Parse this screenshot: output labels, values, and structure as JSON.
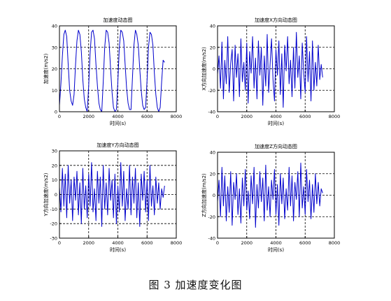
{
  "caption": "图 3  加速度变化图",
  "style": {
    "line_color": "#0000cc",
    "axis_color": "#000000",
    "grid_color": "#000000"
  },
  "chart_data": [
    {
      "type": "line",
      "title": "加速度动态图",
      "xlabel": "时间(s)",
      "ylabel": "加速度(m/s2)",
      "xlim": [
        0,
        8000
      ],
      "ylim": [
        0,
        40
      ],
      "xticks": [
        0,
        2000,
        4000,
        6000,
        8000
      ],
      "yticks": [
        0,
        10,
        20,
        30,
        40
      ],
      "grid": true,
      "series": [
        {
          "x": [
            0,
            100,
            200,
            300,
            400,
            500,
            600,
            700,
            800,
            900,
            1000,
            1100,
            1200,
            1300,
            1400,
            1500,
            1600,
            1700,
            1800,
            1900,
            2000,
            2100,
            2200,
            2300,
            2400,
            2500,
            2600,
            2700,
            2800,
            2900,
            3000,
            3100,
            3200,
            3300,
            3400,
            3500,
            3600,
            3700,
            3800,
            3900,
            4000,
            4100,
            4200,
            4300,
            4400,
            4500,
            4600,
            4700,
            4800,
            4900,
            5000,
            5100,
            5200,
            5300,
            5400,
            5500,
            5600,
            5700,
            5800,
            5900,
            6000,
            6100,
            6200,
            6300,
            6400,
            6500,
            6600,
            6700,
            6800,
            6900,
            7000,
            7100,
            7200
          ],
          "y": [
            3,
            13,
            26,
            36,
            38,
            35,
            22,
            10,
            5,
            3,
            8,
            22,
            33,
            38,
            36,
            28,
            15,
            6,
            2,
            0,
            12,
            27,
            37,
            38,
            34,
            22,
            12,
            4,
            1,
            0,
            14,
            30,
            38,
            37,
            32,
            20,
            9,
            2,
            0,
            1,
            14,
            30,
            38,
            37,
            33,
            22,
            11,
            4,
            1,
            1,
            16,
            31,
            38,
            36,
            31,
            20,
            10,
            3,
            1,
            2,
            15,
            30,
            37,
            36,
            31,
            18,
            8,
            2,
            0,
            2,
            14,
            24,
            23
          ]
        }
      ]
    },
    {
      "type": "line",
      "title": "加速度X方向动态图",
      "xlabel": "时间(s)",
      "ylabel": "X方向加速度(m/s2)",
      "xlim": [
        0,
        8000
      ],
      "ylim": [
        -40,
        40
      ],
      "xticks": [
        0,
        2000,
        4000,
        6000,
        8000
      ],
      "yticks": [
        -40,
        -20,
        0,
        20,
        40
      ],
      "grid": true,
      "series": [
        {
          "x": [
            0,
            100,
            200,
            300,
            400,
            500,
            600,
            700,
            800,
            900,
            1000,
            1100,
            1200,
            1300,
            1400,
            1500,
            1600,
            1700,
            1800,
            1900,
            2000,
            2100,
            2200,
            2300,
            2400,
            2500,
            2600,
            2700,
            2800,
            2900,
            3000,
            3100,
            3200,
            3300,
            3400,
            3500,
            3600,
            3700,
            3800,
            3900,
            4000,
            4100,
            4200,
            4300,
            4400,
            4500,
            4600,
            4700,
            4800,
            4900,
            5000,
            5100,
            5200,
            5300,
            5400,
            5500,
            5600,
            5700,
            5800,
            5900,
            6000,
            6100,
            6200,
            6300,
            6400,
            6500,
            6600,
            6700,
            6800,
            6900,
            7000,
            7100,
            7200
          ],
          "y": [
            -5,
            12,
            -18,
            25,
            -28,
            8,
            -14,
            30,
            -22,
            5,
            18,
            -30,
            22,
            -8,
            14,
            -26,
            28,
            -12,
            6,
            -20,
            24,
            -32,
            16,
            -4,
            30,
            -18,
            10,
            -28,
            26,
            -6,
            20,
            -34,
            12,
            -16,
            32,
            -22,
            4,
            28,
            -10,
            -30,
            18,
            -6,
            26,
            -24,
            14,
            -36,
            22,
            -2,
            30,
            -14,
            8,
            -26,
            20,
            -18,
            34,
            -8,
            12,
            -28,
            24,
            -4,
            -22,
            30,
            -12,
            16,
            -30,
            26,
            -20,
            6,
            -16,
            22,
            -10,
            4,
            -8
          ]
        }
      ]
    },
    {
      "type": "line",
      "title": "加速度Y方向动态图",
      "xlabel": "时间(s)",
      "ylabel": "Y方向加速度(m/s2)",
      "xlim": [
        0,
        8000
      ],
      "ylim": [
        -30,
        30
      ],
      "xticks": [
        0,
        2000,
        4000,
        6000,
        8000
      ],
      "yticks": [
        -30,
        -20,
        -10,
        0,
        10,
        20,
        30
      ],
      "grid": true,
      "series": [
        {
          "x": [
            0,
            100,
            200,
            300,
            400,
            500,
            600,
            700,
            800,
            900,
            1000,
            1100,
            1200,
            1300,
            1400,
            1500,
            1600,
            1700,
            1800,
            1900,
            2000,
            2100,
            2200,
            2300,
            2400,
            2500,
            2600,
            2700,
            2800,
            2900,
            3000,
            3100,
            3200,
            3300,
            3400,
            3500,
            3600,
            3700,
            3800,
            3900,
            4000,
            4100,
            4200,
            4300,
            4400,
            4500,
            4600,
            4700,
            4800,
            4900,
            5000,
            5100,
            5200,
            5300,
            5400,
            5500,
            5600,
            5700,
            5800,
            5900,
            6000,
            6100,
            6200,
            6300,
            6400,
            6500,
            6600,
            6700,
            6800,
            6900,
            7000,
            7100,
            7200
          ],
          "y": [
            5,
            -12,
            18,
            -8,
            14,
            -16,
            20,
            -6,
            10,
            -18,
            12,
            -4,
            16,
            -14,
            8,
            -20,
            18,
            -10,
            6,
            -16,
            14,
            -8,
            22,
            -12,
            4,
            -18,
            16,
            -6,
            12,
            -22,
            20,
            -10,
            8,
            -14,
            18,
            -4,
            10,
            -16,
            14,
            -20,
            6,
            -12,
            22,
            -8,
            16,
            -18,
            4,
            -10,
            20,
            -14,
            12,
            -6,
            18,
            -16,
            8,
            -22,
            14,
            -4,
            16,
            -12,
            10,
            -18,
            20,
            -8,
            6,
            -14,
            12,
            -6,
            8,
            -10,
            4,
            -2,
            6
          ]
        }
      ]
    },
    {
      "type": "line",
      "title": "加速度Z方向动态图",
      "xlabel": "时间(s)",
      "ylabel": "Z方向加速度(m/s2)",
      "xlim": [
        0,
        8000
      ],
      "ylim": [
        -40,
        40
      ],
      "xticks": [
        0,
        2000,
        4000,
        6000,
        8000
      ],
      "yticks": [
        -40,
        -20,
        0,
        20,
        40
      ],
      "grid": true,
      "series": [
        {
          "x": [
            0,
            100,
            200,
            300,
            400,
            500,
            600,
            700,
            800,
            900,
            1000,
            1100,
            1200,
            1300,
            1400,
            1500,
            1600,
            1700,
            1800,
            1900,
            2000,
            2100,
            2200,
            2300,
            2400,
            2500,
            2600,
            2700,
            2800,
            2900,
            3000,
            3100,
            3200,
            3300,
            3400,
            3500,
            3600,
            3700,
            3800,
            3900,
            4000,
            4100,
            4200,
            4300,
            4400,
            4500,
            4600,
            4700,
            4800,
            4900,
            5000,
            5100,
            5200,
            5300,
            5400,
            5500,
            5600,
            5700,
            5800,
            5900,
            6000,
            6100,
            6200,
            6300,
            6400,
            6500,
            6600,
            6700,
            6800,
            6900,
            7000,
            7100,
            7200
          ],
          "y": [
            -6,
            14,
            -20,
            26,
            -10,
            18,
            -24,
            8,
            -16,
            22,
            -28,
            12,
            -4,
            20,
            -18,
            6,
            -26,
            16,
            -10,
            24,
            -14,
            4,
            -22,
            18,
            -8,
            26,
            -30,
            10,
            -12,
            22,
            -6,
            16,
            -24,
            28,
            -14,
            8,
            -20,
            14,
            -4,
            24,
            -18,
            10,
            -28,
            20,
            -8,
            16,
            -22,
            6,
            -14,
            26,
            -10,
            18,
            -24,
            12,
            -4,
            22,
            -20,
            30,
            -12,
            8,
            -18,
            24,
            -6,
            14,
            -22,
            10,
            -16,
            20,
            -8,
            12,
            -10,
            6,
            2
          ]
        }
      ]
    }
  ]
}
